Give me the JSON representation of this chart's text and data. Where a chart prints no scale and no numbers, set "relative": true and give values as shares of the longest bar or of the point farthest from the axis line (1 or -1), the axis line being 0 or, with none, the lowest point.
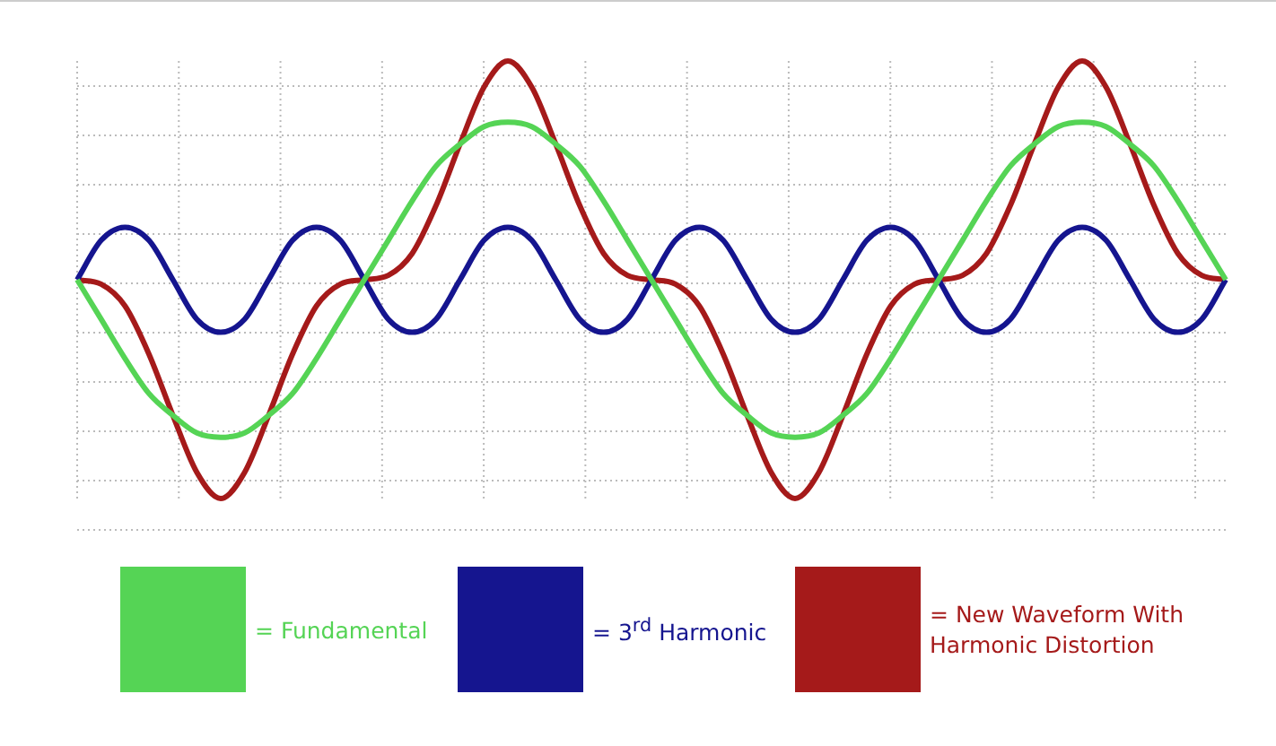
{
  "chart_data": {
    "type": "line",
    "relative": true,
    "grid": true,
    "legend": "bottom",
    "marker": "none",
    "line_style": "solid",
    "categories": [
      null,
      null,
      null,
      null,
      null,
      null,
      null,
      null,
      null,
      null,
      null,
      null,
      null,
      null,
      null,
      null,
      null,
      null,
      null,
      null,
      null,
      null,
      null,
      null,
      null,
      null,
      null,
      null,
      null,
      null,
      null,
      null,
      null,
      null,
      null,
      null,
      null,
      null,
      null,
      null,
      null,
      null,
      null,
      null,
      null,
      null,
      null,
      null,
      null
    ],
    "series": [
      {
        "name": "= Fundamental",
        "color": "#55d455",
        "values": [
          0.5,
          0.41,
          0.32,
          0.24,
          0.19,
          0.15,
          0.14,
          0.15,
          0.19,
          0.24,
          0.32,
          0.41,
          0.5,
          0.59,
          0.68,
          0.76,
          0.81,
          0.85,
          0.86,
          0.85,
          0.81,
          0.76,
          0.68,
          0.59,
          0.5,
          0.41,
          0.32,
          0.24,
          0.19,
          0.15,
          0.14,
          0.15,
          0.19,
          0.24,
          0.32,
          0.41,
          0.5,
          0.59,
          0.68,
          0.76,
          0.81,
          0.85,
          0.86,
          0.85,
          0.81,
          0.76,
          0.68,
          0.59,
          0.5
        ]
      },
      {
        "name": "= 3$^{rd}$ Harmonic",
        "color": "#15158f",
        "values": [
          0.5,
          0.59,
          0.62,
          0.59,
          0.5,
          0.41,
          0.38,
          0.41,
          0.5,
          0.59,
          0.62,
          0.59,
          0.5,
          0.41,
          0.38,
          0.41,
          0.5,
          0.59,
          0.62,
          0.59,
          0.5,
          0.41,
          0.38,
          0.41,
          0.5,
          0.59,
          0.62,
          0.59,
          0.5,
          0.41,
          0.38,
          0.41,
          0.5,
          0.59,
          0.62,
          0.59,
          0.5,
          0.41,
          0.38,
          0.41,
          0.5,
          0.59,
          0.62,
          0.59,
          0.5,
          0.41,
          0.38,
          0.41,
          0.5
        ]
      },
      {
        "name": "= New Waveform With Harmonic Distortion",
        "color": "#a51a1a",
        "values": [
          0.5,
          0.49,
          0.44,
          0.33,
          0.19,
          0.06,
          0,
          0.06,
          0.19,
          0.33,
          0.44,
          0.49,
          0.5,
          0.51,
          0.56,
          0.67,
          0.81,
          0.94,
          1,
          0.94,
          0.81,
          0.67,
          0.56,
          0.51,
          0.5,
          0.49,
          0.44,
          0.33,
          0.19,
          0.06,
          0,
          0.06,
          0.19,
          0.33,
          0.44,
          0.49,
          0.5,
          0.51,
          0.56,
          0.67,
          0.81,
          0.94,
          1,
          0.94,
          0.81,
          0.67,
          0.56,
          0.51,
          0.5
        ]
      }
    ]
  }
}
